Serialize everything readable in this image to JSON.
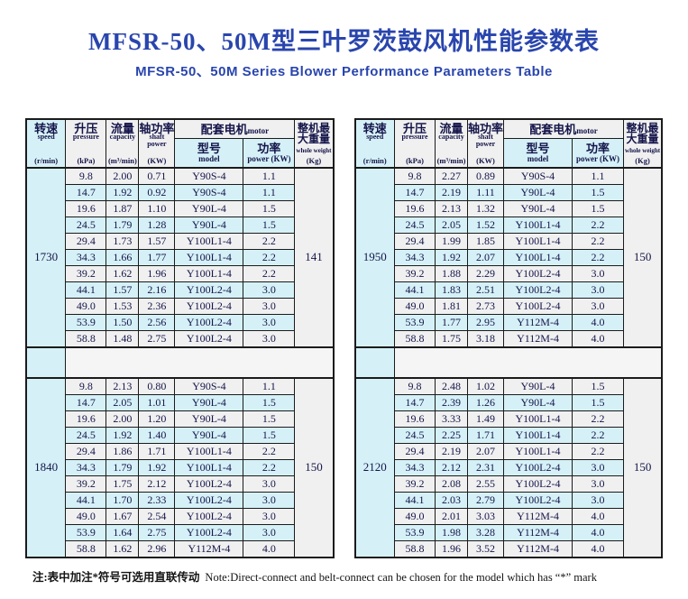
{
  "page": {
    "title": "MFSR-50、50M型三叶罗茨鼓风机性能参数表",
    "subtitle": "MFSR-50、50M Series Blower Performance Parameters Table",
    "note_cn": "注:表中加注*符号可选用直联传动",
    "note_en": "Note:Direct-connect and belt-connect can be chosen for the model which has “*” mark"
  },
  "colors": {
    "title_blue": "#2945ad",
    "row_cyan": "#d5f1f7",
    "row_gray": "#f0f0f0",
    "border": "#1b1b1b",
    "text_navy": "#14144a"
  },
  "header": {
    "speed": {
      "cn": "转速",
      "en": "speed",
      "unit": "(r/min)"
    },
    "pressure": {
      "cn": "升压",
      "en": "pressure",
      "unit": "(kPa)"
    },
    "capacity": {
      "cn": "流量",
      "en": "capacity",
      "unit": "(m³/min)"
    },
    "shaft": {
      "cn": "轴功率",
      "en": "shaft power",
      "unit": "(KW)"
    },
    "motor": {
      "cn": "配套电机",
      "en": "motor"
    },
    "model": {
      "cn": "型号",
      "en": "model"
    },
    "power": {
      "cn": "功率",
      "en": "power (KW)"
    },
    "weight": {
      "cn": "整机最大重量",
      "en": "whole weight",
      "unit": "(Kg)"
    }
  },
  "tables": [
    {
      "blocks": [
        {
          "speed": "1730",
          "weight": "141",
          "rows": [
            [
              "9.8",
              "2.00",
              "0.71",
              "Y90S-4",
              "1.1"
            ],
            [
              "14.7",
              "1.92",
              "0.92",
              "Y90S-4",
              "1.1"
            ],
            [
              "19.6",
              "1.87",
              "1.10",
              "Y90L-4",
              "1.5"
            ],
            [
              "24.5",
              "1.79",
              "1.28",
              "Y90L-4",
              "1.5"
            ],
            [
              "29.4",
              "1.73",
              "1.57",
              "Y100L1-4",
              "2.2"
            ],
            [
              "34.3",
              "1.66",
              "1.77",
              "Y100L1-4",
              "2.2"
            ],
            [
              "39.2",
              "1.62",
              "1.96",
              "Y100L1-4",
              "2.2"
            ],
            [
              "44.1",
              "1.57",
              "2.16",
              "Y100L2-4",
              "3.0"
            ],
            [
              "49.0",
              "1.53",
              "2.36",
              "Y100L2-4",
              "3.0"
            ],
            [
              "53.9",
              "1.50",
              "2.56",
              "Y100L2-4",
              "3.0"
            ],
            [
              "58.8",
              "1.48",
              "2.75",
              "Y100L2-4",
              "3.0"
            ]
          ]
        },
        {
          "speed": "1840",
          "weight": "150",
          "rows": [
            [
              "9.8",
              "2.13",
              "0.80",
              "Y90S-4",
              "1.1"
            ],
            [
              "14.7",
              "2.05",
              "1.01",
              "Y90L-4",
              "1.5"
            ],
            [
              "19.6",
              "2.00",
              "1.20",
              "Y90L-4",
              "1.5"
            ],
            [
              "24.5",
              "1.92",
              "1.40",
              "Y90L-4",
              "1.5"
            ],
            [
              "29.4",
              "1.86",
              "1.71",
              "Y100L1-4",
              "2.2"
            ],
            [
              "34.3",
              "1.79",
              "1.92",
              "Y100L1-4",
              "2.2"
            ],
            [
              "39.2",
              "1.75",
              "2.12",
              "Y100L2-4",
              "3.0"
            ],
            [
              "44.1",
              "1.70",
              "2.33",
              "Y100L2-4",
              "3.0"
            ],
            [
              "49.0",
              "1.67",
              "2.54",
              "Y100L2-4",
              "3.0"
            ],
            [
              "53.9",
              "1.64",
              "2.75",
              "Y100L2-4",
              "3.0"
            ],
            [
              "58.8",
              "1.62",
              "2.96",
              "Y112M-4",
              "4.0"
            ]
          ]
        }
      ]
    },
    {
      "blocks": [
        {
          "speed": "1950",
          "weight": "150",
          "rows": [
            [
              "9.8",
              "2.27",
              "0.89",
              "Y90S-4",
              "1.1"
            ],
            [
              "14.7",
              "2.19",
              "1.11",
              "Y90L-4",
              "1.5"
            ],
            [
              "19.6",
              "2.13",
              "1.32",
              "Y90L-4",
              "1.5"
            ],
            [
              "24.5",
              "2.05",
              "1.52",
              "Y100L1-4",
              "2.2"
            ],
            [
              "29.4",
              "1.99",
              "1.85",
              "Y100L1-4",
              "2.2"
            ],
            [
              "34.3",
              "1.92",
              "2.07",
              "Y100L1-4",
              "2.2"
            ],
            [
              "39.2",
              "1.88",
              "2.29",
              "Y100L2-4",
              "3.0"
            ],
            [
              "44.1",
              "1.83",
              "2.51",
              "Y100L2-4",
              "3.0"
            ],
            [
              "49.0",
              "1.81",
              "2.73",
              "Y100L2-4",
              "3.0"
            ],
            [
              "53.9",
              "1.77",
              "2.95",
              "Y112M-4",
              "4.0"
            ],
            [
              "58.8",
              "1.75",
              "3.18",
              "Y112M-4",
              "4.0"
            ]
          ]
        },
        {
          "speed": "2120",
          "weight": "150",
          "rows": [
            [
              "9.8",
              "2.48",
              "1.02",
              "Y90L-4",
              "1.5"
            ],
            [
              "14.7",
              "2.39",
              "1.26",
              "Y90L-4",
              "1.5"
            ],
            [
              "19.6",
              "3.33",
              "1.49",
              "Y100L1-4",
              "2.2"
            ],
            [
              "24.5",
              "2.25",
              "1.71",
              "Y100L1-4",
              "2.2"
            ],
            [
              "29.4",
              "2.19",
              "2.07",
              "Y100L1-4",
              "2.2"
            ],
            [
              "34.3",
              "2.12",
              "2.31",
              "Y100L2-4",
              "3.0"
            ],
            [
              "39.2",
              "2.08",
              "2.55",
              "Y100L2-4",
              "3.0"
            ],
            [
              "44.1",
              "2.03",
              "2.79",
              "Y100L2-4",
              "3.0"
            ],
            [
              "49.0",
              "2.01",
              "3.03",
              "Y112M-4",
              "4.0"
            ],
            [
              "53.9",
              "1.98",
              "3.28",
              "Y112M-4",
              "4.0"
            ],
            [
              "58.8",
              "1.96",
              "3.52",
              "Y112M-4",
              "4.0"
            ]
          ]
        }
      ]
    }
  ]
}
